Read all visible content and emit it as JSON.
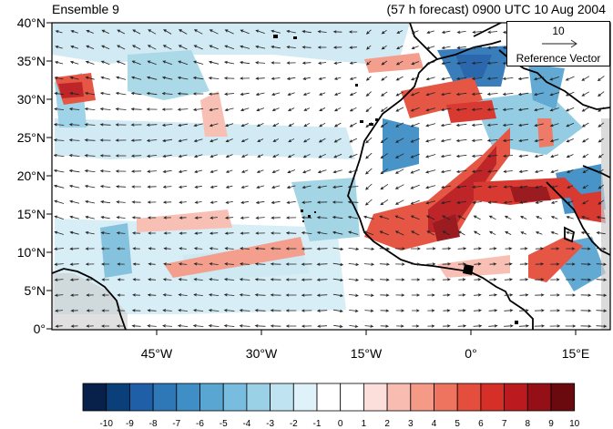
{
  "titles": {
    "left": "Ensemble 9",
    "right": "(57 h forecast) 0900 UTC 10 Aug 2004"
  },
  "map": {
    "lat_labels": [
      "40°N",
      "35°N",
      "30°N",
      "25°N",
      "20°N",
      "15°N",
      "10°N",
      "5°N",
      "0°"
    ],
    "lon_labels": [
      "45°W",
      "30°W",
      "15°W",
      "0°",
      "15°E"
    ],
    "lat_range": [
      0,
      40
    ],
    "lon_range": [
      -60,
      20
    ]
  },
  "reference_vector": {
    "value": "10",
    "label": "Reference Vector"
  },
  "colorbar": {
    "labels": [
      "-10",
      "-9",
      "-8",
      "-7",
      "-6",
      "-5",
      "-4",
      "-3",
      "-2",
      "-1",
      "0",
      "1",
      "2",
      "3",
      "4",
      "5",
      "6",
      "7",
      "8",
      "9",
      "10"
    ],
    "colors": [
      "#08214a",
      "#0a3f7a",
      "#1f5fa8",
      "#2f78b8",
      "#3f8fc6",
      "#5aa6d2",
      "#78bddf",
      "#9ad1e6",
      "#bfe3f0",
      "#e0f2f9",
      "#ffffff",
      "#ffffff",
      "#fcdedb",
      "#f8bcb1",
      "#f49a87",
      "#ee7460",
      "#e54e3c",
      "#d62f27",
      "#bb1a1e",
      "#951016",
      "#6a0a0f"
    ]
  },
  "colors": {
    "coast": "#000000",
    "grid": "#000000",
    "arrow": "#222222"
  }
}
